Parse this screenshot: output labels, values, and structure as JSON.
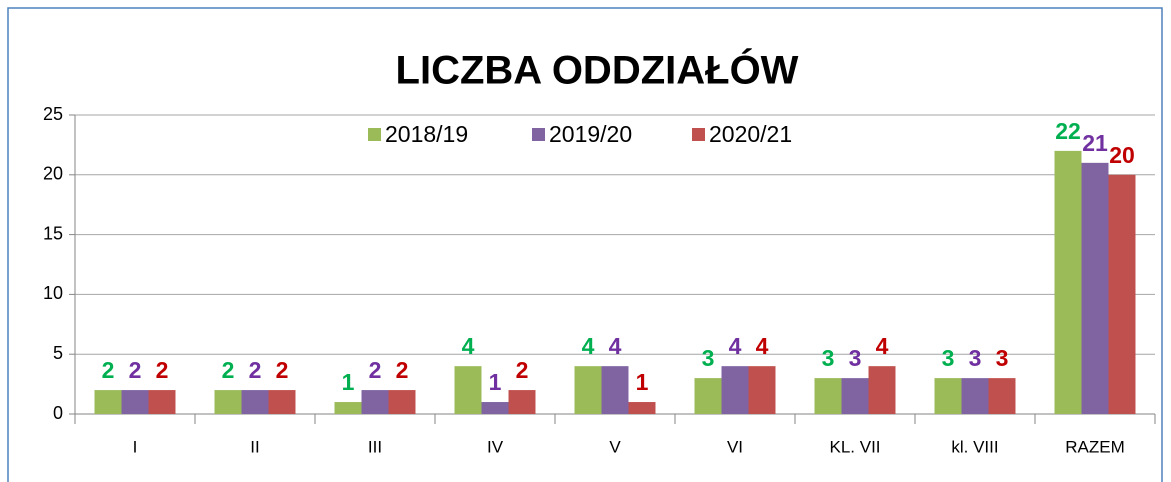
{
  "chart_data": {
    "type": "bar",
    "title": "LICZBA ODDZIAŁÓW",
    "categories": [
      "I",
      "II",
      "III",
      "IV",
      "V",
      "VI",
      "KL. VII",
      "kl. VIII",
      "RAZEM"
    ],
    "series": [
      {
        "name": "2018/19",
        "color": "#9bbb59",
        "label_color": "#00b050",
        "values": [
          2,
          2,
          1,
          4,
          4,
          3,
          3,
          3,
          22
        ]
      },
      {
        "name": "2019/20",
        "color": "#8064a2",
        "label_color": "#7030a0",
        "values": [
          2,
          2,
          2,
          1,
          4,
          4,
          3,
          3,
          21
        ]
      },
      {
        "name": "2020/21",
        "color": "#c0504d",
        "label_color": "#c00000",
        "values": [
          2,
          2,
          2,
          2,
          1,
          4,
          4,
          3,
          20
        ]
      }
    ],
    "ylim": [
      0,
      25
    ],
    "yticks": [
      0,
      5,
      10,
      15,
      20,
      25
    ],
    "grid": true,
    "legend": "top"
  }
}
